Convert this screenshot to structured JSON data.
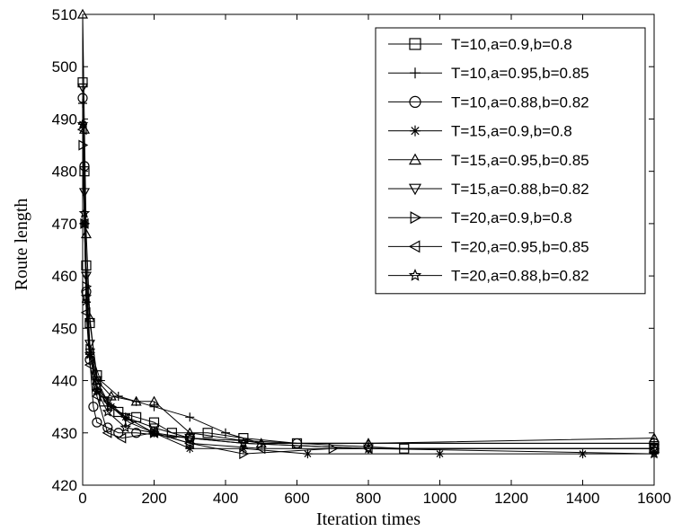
{
  "chart_data": {
    "type": "line",
    "title": "",
    "xlabel": "Iteration times",
    "ylabel": "Route length",
    "xlim": [
      0,
      1600
    ],
    "ylim": [
      420,
      510
    ],
    "xticks": [
      0,
      200,
      400,
      600,
      800,
      1000,
      1200,
      1400,
      1600
    ],
    "yticks": [
      420,
      430,
      440,
      450,
      460,
      470,
      480,
      490,
      500,
      510
    ],
    "grid": false,
    "legend_position": "top-right",
    "line_color": "#000000",
    "series": [
      {
        "name": "T=10,a=0.9,b=0.8",
        "marker": "square",
        "x": [
          0,
          5,
          10,
          20,
          40,
          60,
          100,
          150,
          200,
          250,
          350,
          450,
          600,
          900,
          1600
        ],
        "y": [
          497,
          480,
          462,
          451,
          441,
          436,
          434,
          433,
          432,
          430,
          430,
          429,
          428,
          427,
          427
        ]
      },
      {
        "name": "T=10,a=0.95,b=0.85",
        "marker": "plus",
        "x": [
          0,
          5,
          10,
          20,
          50,
          100,
          150,
          200,
          300,
          400,
          500,
          800,
          1600
        ],
        "y": [
          493,
          470,
          455,
          446,
          440,
          437,
          436,
          435,
          433,
          430,
          428,
          428,
          428
        ]
      },
      {
        "name": "T=10,a=0.88,b=0.82",
        "marker": "circle",
        "x": [
          0,
          5,
          10,
          20,
          30,
          40,
          70,
          100,
          150,
          300,
          600,
          1600
        ],
        "y": [
          494,
          481,
          457,
          444,
          435,
          432,
          431,
          430,
          430,
          429,
          428,
          428
        ]
      },
      {
        "name": "T=15,a=0.9,b=0.8",
        "marker": "asterisk",
        "x": [
          0,
          5,
          10,
          20,
          40,
          80,
          120,
          200,
          300,
          450,
          630,
          1000,
          1400,
          1600
        ],
        "y": [
          489,
          470,
          455,
          445,
          438,
          435,
          433,
          430,
          427,
          427,
          426,
          426,
          426,
          426
        ]
      },
      {
        "name": "T=15,a=0.95,b=0.85",
        "marker": "triangle-up",
        "x": [
          0,
          5,
          10,
          20,
          40,
          80,
          150,
          200,
          300,
          500,
          800,
          1600
        ],
        "y": [
          510,
          488,
          468,
          452,
          440,
          437,
          436,
          436,
          430,
          428,
          428,
          429
        ]
      },
      {
        "name": "T=15,a=0.88,b=0.82",
        "marker": "triangle-down",
        "x": [
          0,
          5,
          10,
          20,
          40,
          70,
          120,
          200,
          300,
          450,
          800,
          1600
        ],
        "y": [
          496,
          476,
          460,
          447,
          440,
          436,
          433,
          431,
          429,
          428,
          427,
          427
        ]
      },
      {
        "name": "T=20,a=0.9,b=0.8",
        "marker": "triangle-right",
        "x": [
          0,
          5,
          10,
          20,
          40,
          80,
          130,
          200,
          300,
          450,
          700,
          1600
        ],
        "y": [
          485,
          470,
          458,
          446,
          439,
          435,
          432,
          430,
          428,
          426,
          427,
          427
        ]
      },
      {
        "name": "T=20,a=0.95,b=0.85",
        "marker": "triangle-left",
        "x": [
          0,
          5,
          10,
          20,
          40,
          70,
          110,
          200,
          300,
          500,
          800,
          1600
        ],
        "y": [
          488,
          470,
          453,
          443,
          437,
          430,
          429,
          430,
          428,
          427,
          427,
          427
        ]
      },
      {
        "name": "T=20,a=0.88,b=0.82",
        "marker": "star",
        "x": [
          0,
          5,
          10,
          20,
          40,
          70,
          120,
          200,
          300,
          450,
          800,
          1600
        ],
        "y": [
          489,
          472,
          456,
          445,
          438,
          434,
          431,
          430,
          429,
          428,
          427,
          426
        ]
      }
    ]
  }
}
